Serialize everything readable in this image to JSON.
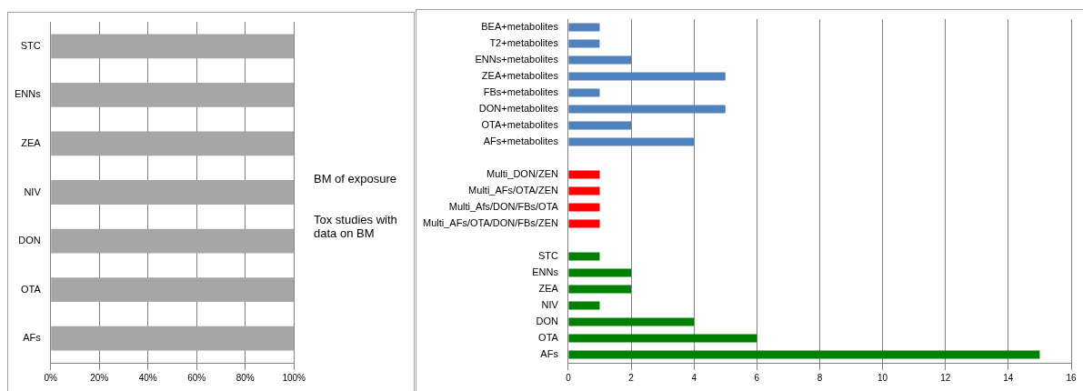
{
  "chart_data": [
    {
      "type": "bar",
      "orientation": "horizontal",
      "categories": [
        "STC",
        "ENNs",
        "ZEA",
        "NIV",
        "DON",
        "OTA",
        "AFs"
      ],
      "series": [
        {
          "color": "#a6a6a6",
          "values": [
            100,
            100,
            100,
            100,
            100,
            100,
            100
          ]
        }
      ],
      "xlim": [
        0,
        100
      ],
      "xticks": [
        {
          "value": 0,
          "label": "0%"
        },
        {
          "value": 20,
          "label": "20%"
        },
        {
          "value": 40,
          "label": "40%"
        },
        {
          "value": 60,
          "label": "60%"
        },
        {
          "value": 80,
          "label": "80%"
        },
        {
          "value": 100,
          "label": "100%"
        }
      ],
      "grid": "x",
      "legend": false,
      "annotations": [
        "BM of exposure",
        "Tox studies with data on BM"
      ]
    },
    {
      "type": "bar",
      "orientation": "horizontal",
      "categories": [
        "BEA+metabolites",
        "T2+metabolites",
        "ENNs+metabolites",
        "ZEA+metabolites",
        "FBs+metabolites",
        "DON+metabolites",
        "OTA+metabolites",
        "AFs+metabolites",
        null,
        "Multi_DON/ZEN",
        "Multi_AFs/OTA/ZEN",
        "Multi_Afs/DON/FBs/OTA",
        "Multi_AFs/OTA/DON/FBs/ZEN",
        null,
        "STC",
        "ENNs",
        "ZEA",
        "NIV",
        "DON",
        "OTA",
        "AFs"
      ],
      "values": [
        1,
        1,
        2,
        5,
        1,
        5,
        2,
        4,
        null,
        1,
        1,
        1,
        1,
        null,
        1,
        2,
        2,
        1,
        4,
        6,
        15
      ],
      "colors": [
        "#4f81bd",
        "#4f81bd",
        "#4f81bd",
        "#4f81bd",
        "#4f81bd",
        "#4f81bd",
        "#4f81bd",
        "#4f81bd",
        "#4f81bd",
        "#ff0000",
        "#ff0000",
        "#ff0000",
        "#ff0000",
        "#008000",
        "#008000",
        "#008000",
        "#008000",
        "#008000",
        "#008000",
        "#008000",
        "#008000"
      ],
      "xlim": [
        0,
        16
      ],
      "xticks": [
        0,
        2,
        4,
        6,
        8,
        10,
        12,
        14,
        16
      ],
      "grid": "x",
      "legend": false
    }
  ]
}
